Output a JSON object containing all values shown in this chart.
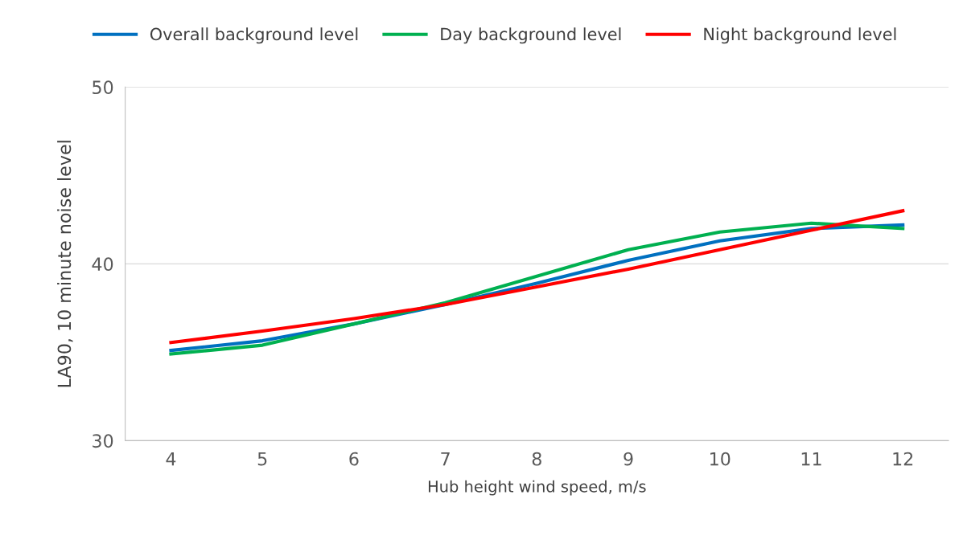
{
  "chart_data": {
    "type": "line",
    "xlabel": "Hub height wind speed, m/s",
    "ylabel": "LA90, 10 minute noise level",
    "categories": [
      "4",
      "5",
      "6",
      "7",
      "8",
      "9",
      "10",
      "11",
      "12"
    ],
    "series": [
      {
        "name": "Overall background level",
        "color": "#0070c0",
        "values": [
          35.1,
          35.65,
          36.6,
          37.7,
          38.9,
          40.2,
          41.3,
          42.0,
          42.2
        ]
      },
      {
        "name": "Day background level",
        "color": "#00b050",
        "values": [
          34.9,
          35.4,
          36.6,
          37.8,
          39.3,
          40.8,
          41.8,
          42.3,
          42.0
        ]
      },
      {
        "name": "Night background level",
        "color": "#ff0000",
        "values": [
          35.55,
          36.2,
          36.9,
          37.7,
          38.7,
          39.7,
          40.8,
          41.9,
          43.0
        ]
      }
    ],
    "ylim": [
      30,
      50
    ],
    "yticks": [
      30,
      40,
      50
    ],
    "grid": "y",
    "legend": "top",
    "marker": "none",
    "line_style": "solid"
  }
}
